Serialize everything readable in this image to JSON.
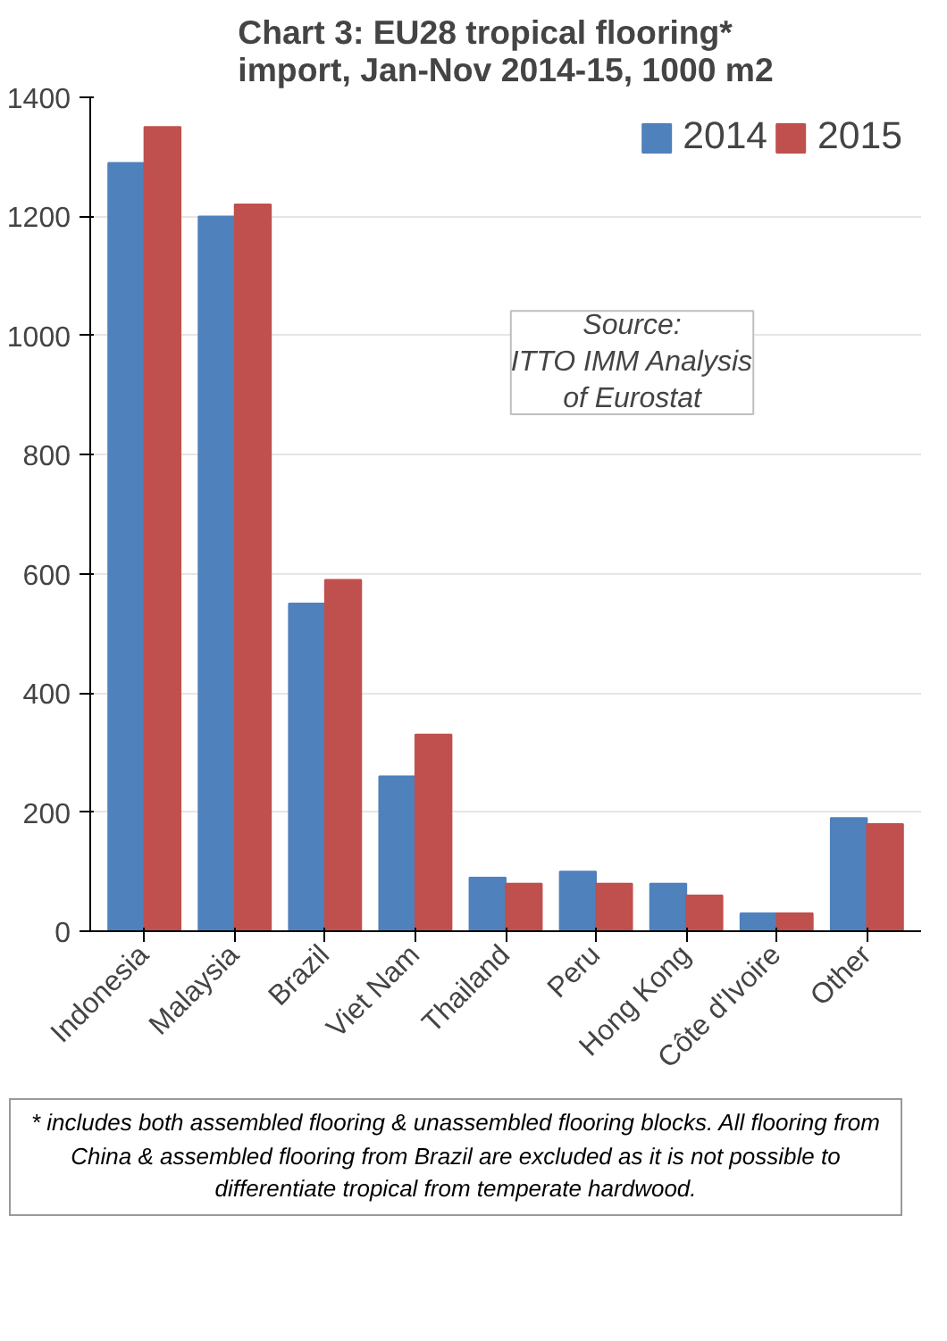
{
  "chart_data": {
    "type": "bar",
    "title": "Chart 3: EU28 tropical flooring*\nimport, Jan-Nov 2014-15, 1000 m2",
    "categories": [
      "Indonesia",
      "Malaysia",
      "Brazil",
      "Viet Nam",
      "Thailand",
      "Peru",
      "Hong Kong",
      "Côte d'Ivoire",
      "Other"
    ],
    "series": [
      {
        "name": "2014",
        "color": "#4f81bd",
        "values": [
          1290,
          1200,
          550,
          260,
          90,
          100,
          80,
          30,
          190
        ]
      },
      {
        "name": "2015",
        "color": "#c0504d",
        "values": [
          1350,
          1220,
          590,
          330,
          80,
          80,
          60,
          30,
          180
        ]
      }
    ],
    "ylim": [
      0,
      1400
    ],
    "yticks": [
      0,
      200,
      400,
      600,
      800,
      1000,
      1200,
      1400
    ],
    "grid": "y",
    "legend": "top right",
    "annotations": [
      "Source:\nITTO IMM Analysis\nof Eurostat",
      "* includes both assembled flooring & unassembled flooring blocks. All flooring from China & assembled flooring from Brazil are excluded as it is not possible to differentiate tropical from temperate hardwood."
    ]
  }
}
